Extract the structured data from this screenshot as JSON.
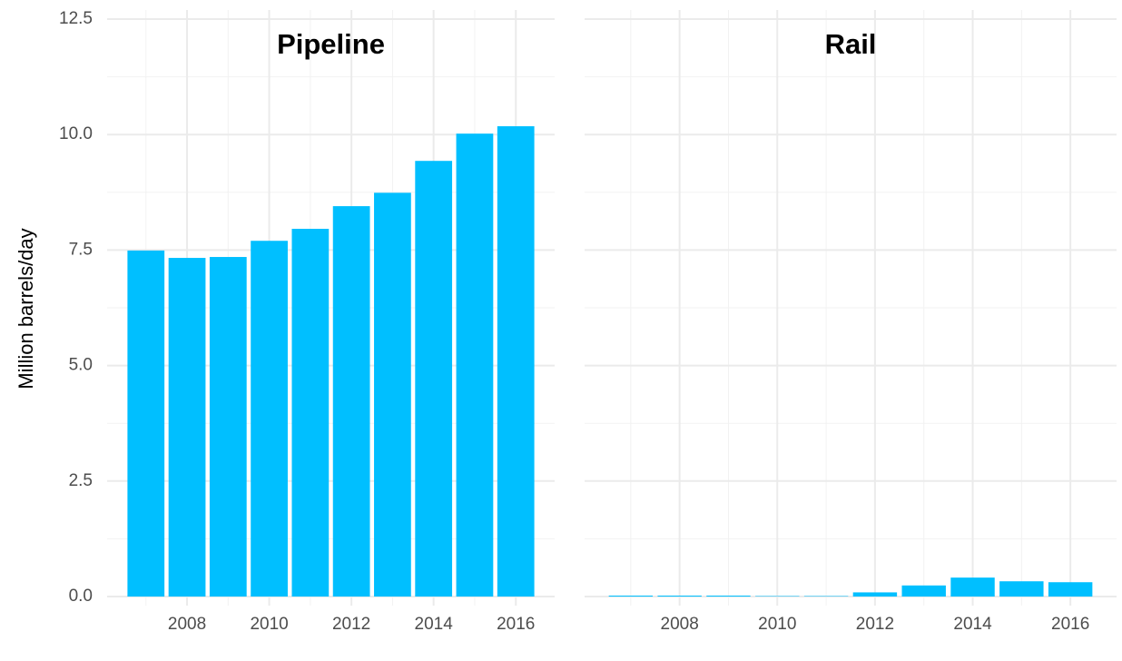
{
  "chart_data": [
    {
      "type": "bar",
      "title": "Pipeline",
      "ylabel": "Million barrels/day",
      "color": "#00bfff",
      "x": [
        2007,
        2008,
        2009,
        2010,
        2011,
        2012,
        2013,
        2014,
        2015,
        2016
      ],
      "values": [
        7.49,
        7.33,
        7.35,
        7.7,
        7.96,
        8.45,
        8.74,
        9.43,
        10.02,
        10.18
      ],
      "xlim": [
        2006.055,
        2016.945
      ],
      "xticks": [
        2008,
        2010,
        2012,
        2014,
        2016
      ],
      "ylim": [
        0,
        12.5
      ],
      "yticks": [
        {
          "value": 0,
          "label": "0.0"
        },
        2.5,
        {
          "value": 5,
          "label": "5.0"
        },
        7.5,
        {
          "value": 10,
          "label": "10.0"
        },
        12.5
      ],
      "grid": true
    },
    {
      "type": "bar",
      "title": "Rail",
      "color": "#00bfff",
      "x": [
        2007,
        2008,
        2009,
        2010,
        2011,
        2012,
        2013,
        2014,
        2015,
        2016
      ],
      "values": [
        0.02,
        0.02,
        0.02,
        0.01,
        0.01,
        0.09,
        0.24,
        0.41,
        0.33,
        0.31
      ],
      "xlim": [
        2006.055,
        2016.945
      ],
      "xticks": [
        2008,
        2010,
        2012,
        2014,
        2016
      ],
      "ylim": [
        0,
        12.5
      ],
      "yticks": [
        0,
        2.5,
        5,
        7.5,
        10,
        12.5
      ],
      "grid": true
    }
  ]
}
